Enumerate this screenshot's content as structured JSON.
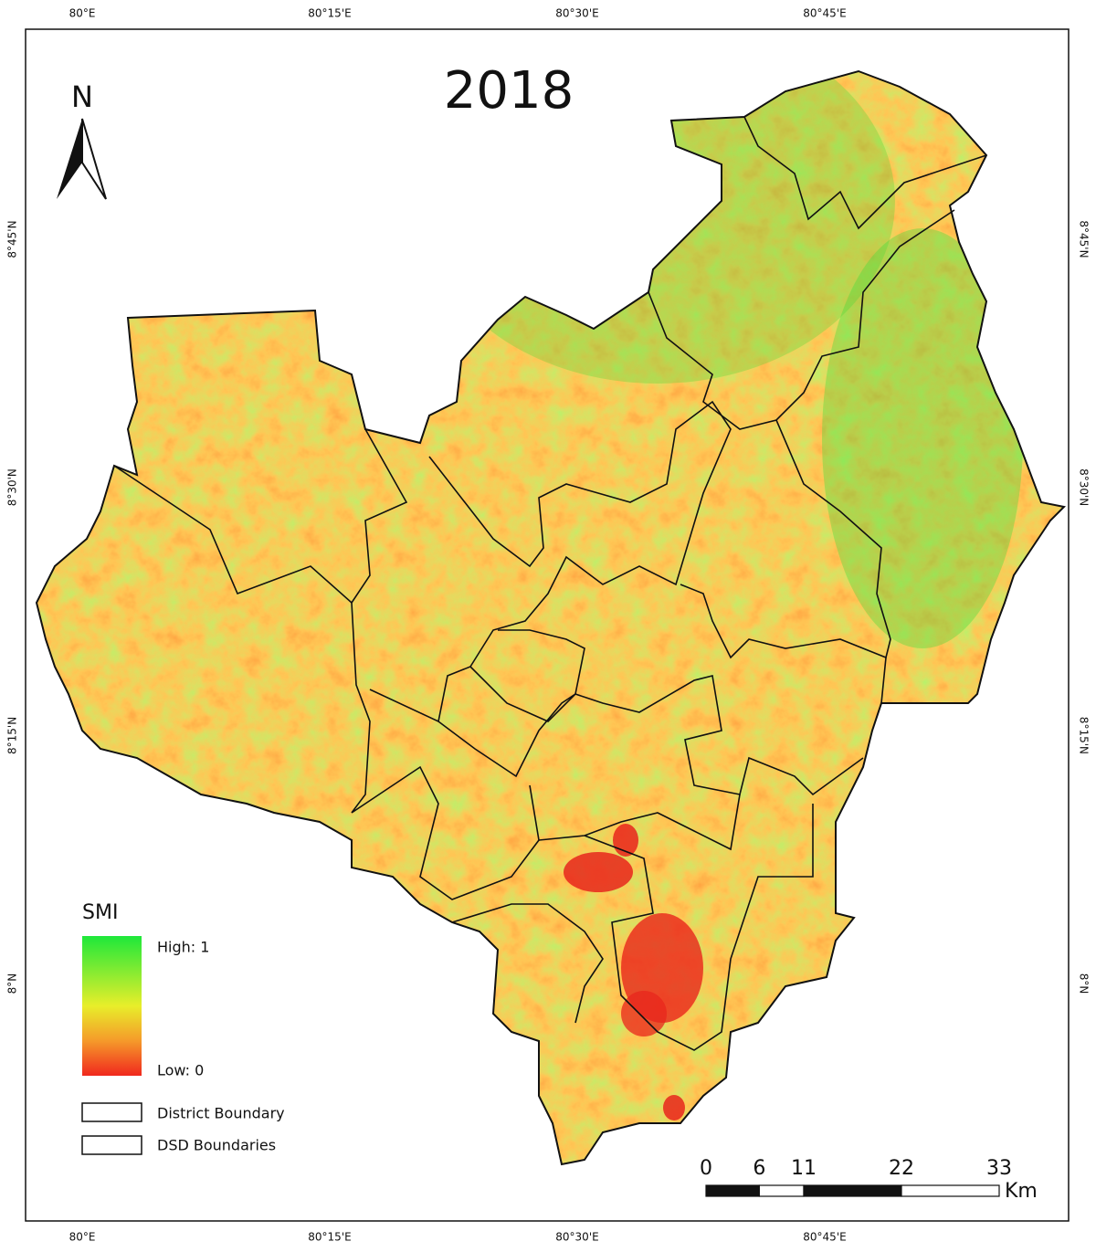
{
  "title": "2018",
  "north_label": "N",
  "graticule": {
    "longitude_labels": [
      "80°E",
      "80°15'E",
      "80°30'E",
      "80°45'E"
    ],
    "latitude_labels": [
      "8°45'N",
      "8°30'N",
      "8°15'N",
      "8°N"
    ]
  },
  "legend": {
    "title": "SMI",
    "high_label": "High: 1",
    "low_label": "Low: 0",
    "items": [
      "District Boundary",
      "DSD Boundaries"
    ]
  },
  "scale_bar": {
    "ticks": [
      0,
      6,
      11,
      22,
      33
    ],
    "unit": "Km"
  }
}
